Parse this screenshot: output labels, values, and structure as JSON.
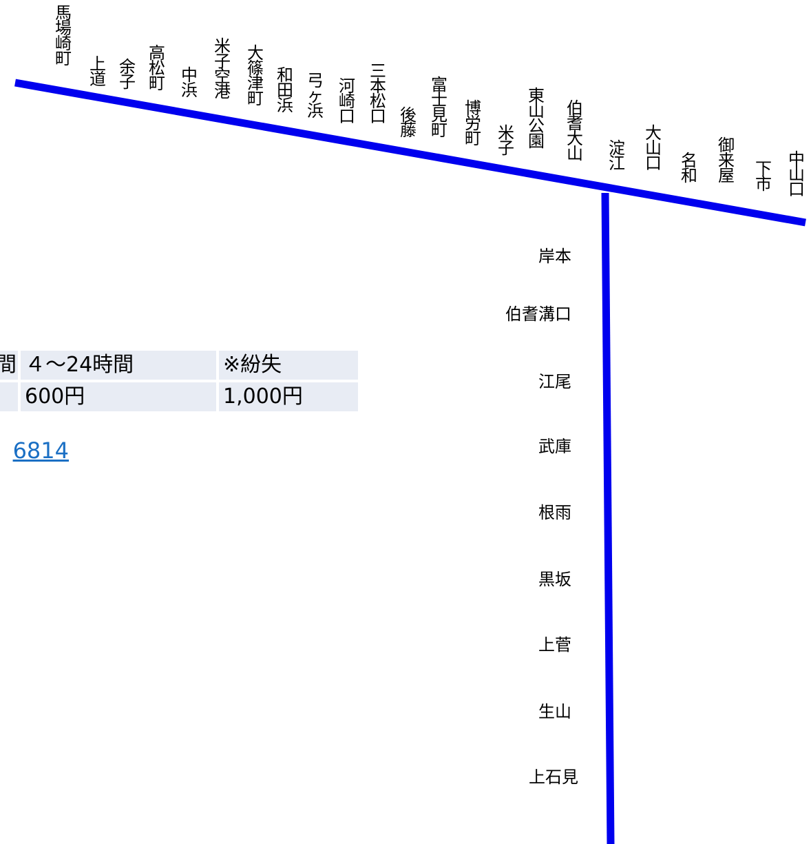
{
  "colors": {
    "line": "#0000ee",
    "table_cell": "#e8ecf4",
    "link": "#1a6fc4"
  },
  "main_line_stations": [
    "馬場崎町",
    "上道",
    "余子",
    "高松町",
    "中浜",
    "米子空港",
    "大篠津町",
    "和田浜",
    "弓ヶ浜",
    "河崎口",
    "三本松口",
    "後藤",
    "富士見町",
    "博労町",
    "米子",
    "東山公園",
    "伯耆大山",
    "淀江",
    "大山口",
    "名和",
    "御来屋",
    "下市",
    "中山口"
  ],
  "branch_line_stations": [
    "岸本",
    "伯耆溝口",
    "江尾",
    "武庫",
    "根雨",
    "黒坂",
    "上菅",
    "生山",
    "上石見"
  ],
  "fare_table": {
    "header": [
      "間",
      "４～24時間",
      "※紛失"
    ],
    "row": [
      "",
      "600円",
      "1,000円"
    ]
  },
  "phone_fragment": "6814"
}
